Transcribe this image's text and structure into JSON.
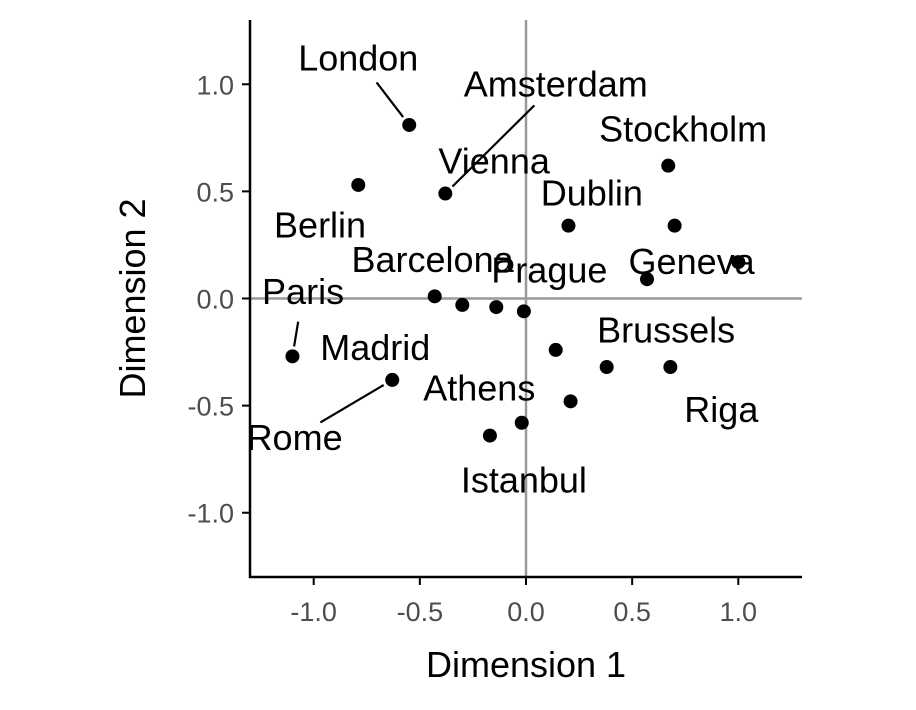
{
  "chart_data": {
    "type": "scatter",
    "title": "",
    "xlabel": "Dimension 1",
    "ylabel": "Dimension 2",
    "xlim": [
      -1.3,
      1.3
    ],
    "ylim": [
      -1.3,
      1.3
    ],
    "xticks": [
      -1.0,
      -0.5,
      0.0,
      0.5,
      1.0
    ],
    "yticks": [
      -1.0,
      -0.5,
      0.0,
      0.5,
      1.0
    ],
    "xtick_labels": [
      "-1.0",
      "-0.5",
      "0.0",
      "0.5",
      "1.0"
    ],
    "ytick_labels": [
      "-1.0",
      "-0.5",
      "0.0",
      "0.5",
      "1.0"
    ],
    "reference_lines": {
      "x": 0,
      "y": 0
    },
    "grid": false,
    "legend": "none",
    "colors": {
      "points": "#000000",
      "reference": "#999999",
      "axis": "#000000"
    },
    "points": [
      {
        "x": -0.55,
        "y": 0.81,
        "label": "London",
        "lx": -0.79,
        "ly": 1.12,
        "leader": true
      },
      {
        "x": -0.79,
        "y": 0.53,
        "label": "Berlin",
        "lx": -0.97,
        "ly": 0.34,
        "leader": false
      },
      {
        "x": -0.38,
        "y": 0.49,
        "label": "Amsterdam",
        "lx": 0.14,
        "ly": 1.0,
        "leader": true
      },
      {
        "x": -1.1,
        "y": -0.27,
        "label": "Paris",
        "lx": -1.05,
        "ly": 0.03,
        "leader": true
      },
      {
        "x": -0.63,
        "y": -0.38,
        "label": "Rome",
        "lx": -1.09,
        "ly": -0.65,
        "leader": true
      },
      {
        "x": -0.43,
        "y": 0.01,
        "label": "Madrid",
        "lx": -0.71,
        "ly": -0.23,
        "leader": false
      },
      {
        "x": -0.3,
        "y": -0.03,
        "label": "Barcelona",
        "lx": -0.44,
        "ly": 0.18,
        "leader": false
      },
      {
        "x": -0.14,
        "y": -0.04,
        "label": "Vienna",
        "lx": -0.15,
        "ly": 0.64,
        "leader": false
      },
      {
        "x": -0.01,
        "y": -0.06,
        "label": "Prague",
        "lx": 0.11,
        "ly": 0.13,
        "leader": false
      },
      {
        "x": 0.2,
        "y": 0.34,
        "label": "Dublin",
        "lx": 0.31,
        "ly": 0.49,
        "leader": true
      },
      {
        "x": 0.67,
        "y": 0.62,
        "label": "Stockholm",
        "lx": 0.74,
        "ly": 0.79,
        "leader": false
      },
      {
        "x": 0.7,
        "y": 0.34,
        "label": "Geneva",
        "lx": 0.78,
        "ly": 0.17,
        "leader": false
      },
      {
        "x": 0.57,
        "y": 0.09,
        "label": "",
        "lx": null,
        "ly": null,
        "leader": false
      },
      {
        "x": 1.0,
        "y": 0.17,
        "label": "",
        "lx": null,
        "ly": null,
        "leader": false
      },
      {
        "x": 0.14,
        "y": -0.24,
        "label": "Brussels",
        "lx": 0.66,
        "ly": -0.15,
        "leader": false
      },
      {
        "x": 0.38,
        "y": -0.32,
        "label": "",
        "lx": null,
        "ly": null,
        "leader": false
      },
      {
        "x": 0.68,
        "y": -0.32,
        "label": "Riga",
        "lx": 0.92,
        "ly": -0.52,
        "leader": false
      },
      {
        "x": 0.21,
        "y": -0.48,
        "label": "Athens",
        "lx": -0.22,
        "ly": -0.42,
        "leader": false
      },
      {
        "x": -0.17,
        "y": -0.64,
        "label": "",
        "lx": null,
        "ly": null,
        "leader": false
      },
      {
        "x": -0.02,
        "y": -0.58,
        "label": "Istanbul",
        "lx": -0.01,
        "ly": -0.85,
        "leader": false
      }
    ]
  }
}
